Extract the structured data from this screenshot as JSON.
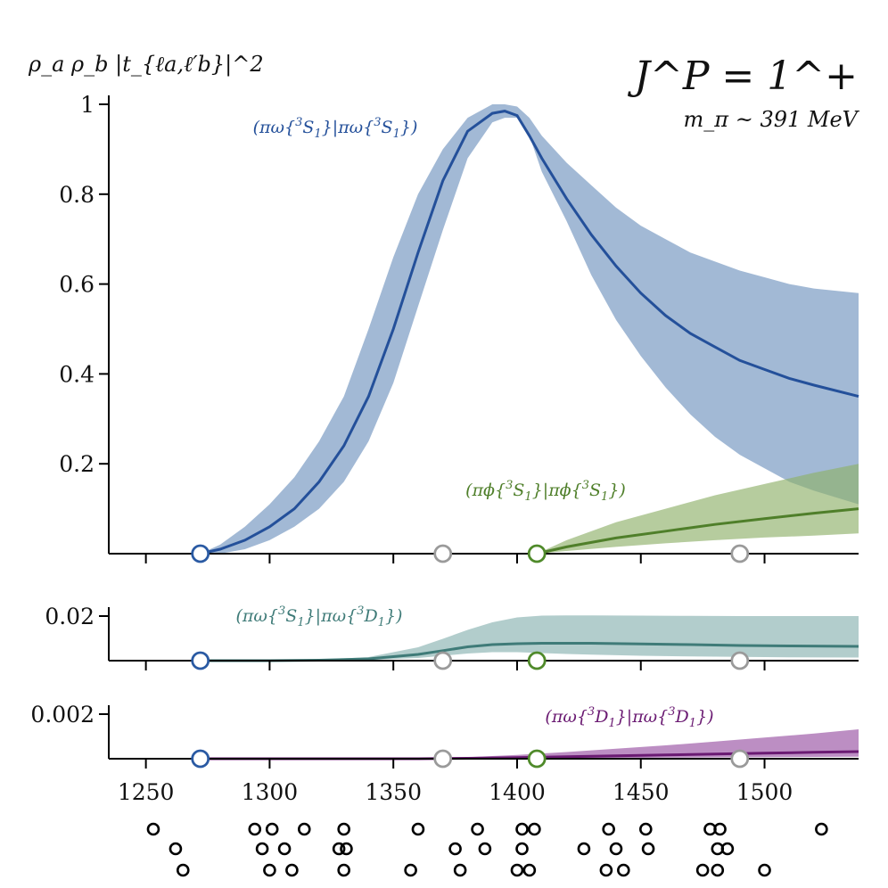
{
  "chart_data": {
    "type": "line",
    "title": "J^P = 1^+",
    "subtitle": "m_π ~ 391 MeV",
    "xlabel": "",
    "ylabel": "ρ_a ρ_b |t_{ℓa,ℓ′b}|^2",
    "xlim": [
      1235,
      1538
    ],
    "x_ticks": [
      1250,
      1300,
      1350,
      1400,
      1450,
      1500
    ],
    "x_tick_labels": [
      "1250",
      "1300",
      "1350",
      "1400",
      "1450",
      "1500"
    ],
    "thresholds": [
      {
        "x": 1272,
        "color": "#2a5aa3"
      },
      {
        "x": 1370,
        "color": "#9a9a9a"
      },
      {
        "x": 1408,
        "color": "#4f8a2a"
      },
      {
        "x": 1490,
        "color": "#9a9a9a"
      }
    ],
    "panels": [
      {
        "ylim": [
          0,
          1.0
        ],
        "y_ticks": [
          0.2,
          0.4,
          0.6,
          0.8,
          1.0
        ],
        "y_tick_labels": [
          "0.2",
          "0.4",
          "0.6",
          "0.8",
          "1"
        ],
        "series": [
          {
            "label_parts": [
              "(πω{",
              "3",
              "S",
              "1",
              "}|πω{",
              "3",
              "S",
              "1",
              "})"
            ],
            "color": "#24509a",
            "band_color": "#a2b9d5",
            "x": [
              1272,
              1280,
              1290,
              1300,
              1310,
              1320,
              1330,
              1340,
              1350,
              1360,
              1370,
              1380,
              1390,
              1395,
              1400,
              1405,
              1410,
              1420,
              1430,
              1440,
              1450,
              1460,
              1470,
              1480,
              1490,
              1500,
              1510,
              1520,
              1538
            ],
            "y": [
              0,
              0.01,
              0.03,
              0.06,
              0.1,
              0.16,
              0.24,
              0.35,
              0.5,
              0.67,
              0.83,
              0.94,
              0.98,
              0.985,
              0.975,
              0.93,
              0.88,
              0.79,
              0.71,
              0.64,
              0.58,
              0.53,
              0.49,
              0.46,
              0.43,
              0.41,
              0.39,
              0.375,
              0.35
            ],
            "lower": [
              0,
              0.0,
              0.01,
              0.03,
              0.06,
              0.1,
              0.16,
              0.25,
              0.38,
              0.55,
              0.72,
              0.88,
              0.96,
              0.97,
              0.97,
              0.93,
              0.85,
              0.74,
              0.62,
              0.52,
              0.44,
              0.37,
              0.31,
              0.26,
              0.22,
              0.19,
              0.16,
              0.14,
              0.11
            ],
            "upper": [
              0,
              0.02,
              0.06,
              0.11,
              0.17,
              0.25,
              0.35,
              0.5,
              0.66,
              0.8,
              0.9,
              0.97,
              1.0,
              1.0,
              0.995,
              0.97,
              0.93,
              0.87,
              0.82,
              0.77,
              0.73,
              0.7,
              0.67,
              0.65,
              0.63,
              0.615,
              0.6,
              0.59,
              0.58
            ]
          },
          {
            "label_parts": [
              "(πϕ{",
              "3",
              "S",
              "1",
              "}|πϕ{",
              "3",
              "S",
              "1",
              "})"
            ],
            "color": "#4f7f2a",
            "band_color": "#8fb06a",
            "band_opacity": 0.65,
            "x": [
              1408,
              1420,
              1440,
              1460,
              1480,
              1500,
              1520,
              1538
            ],
            "y": [
              0,
              0.015,
              0.035,
              0.05,
              0.065,
              0.078,
              0.09,
              0.1
            ],
            "lower": [
              0,
              0.006,
              0.015,
              0.023,
              0.03,
              0.036,
              0.04,
              0.045
            ],
            "upper": [
              0,
              0.03,
              0.07,
              0.1,
              0.13,
              0.155,
              0.18,
              0.2
            ]
          }
        ]
      },
      {
        "ylim": [
          0,
          0.024
        ],
        "y_ticks": [
          0.02
        ],
        "y_tick_labels": [
          "0.02"
        ],
        "series": [
          {
            "label_parts": [
              "(πω{",
              "3",
              "S",
              "1",
              "}|πω{",
              "3",
              "D",
              "1",
              "})"
            ],
            "color": "#3f7b78",
            "band_color": "#aac8c6",
            "band_opacity": 0.9,
            "x": [
              1272,
              1300,
              1320,
              1340,
              1360,
              1370,
              1380,
              1390,
              1400,
              1410,
              1420,
              1430,
              1450,
              1470,
              1490,
              1510,
              1538
            ],
            "y": [
              0,
              0,
              0.0002,
              0.0008,
              0.0028,
              0.0045,
              0.0062,
              0.0072,
              0.0076,
              0.0078,
              0.0078,
              0.0078,
              0.0075,
              0.0072,
              0.0068,
              0.0066,
              0.0064
            ],
            "lower": [
              0,
              0,
              0.0,
              0.0003,
              0.0012,
              0.0022,
              0.0032,
              0.0038,
              0.0038,
              0.0034,
              0.003,
              0.0027,
              0.0022,
              0.0019,
              0.0017,
              0.0015,
              0.0014
            ],
            "upper": [
              0,
              0,
              0.0004,
              0.0016,
              0.006,
              0.0098,
              0.0138,
              0.0172,
              0.0194,
              0.0202,
              0.0203,
              0.0203,
              0.0202,
              0.0201,
              0.02,
              0.02,
              0.02
            ]
          }
        ]
      },
      {
        "ylim": [
          0,
          0.0026
        ],
        "y_ticks": [
          0.002
        ],
        "y_tick_labels": [
          "0.002"
        ],
        "series": [
          {
            "label_parts": [
              "(πω{",
              "3",
              "D",
              "1",
              "}|πω{",
              "3",
              "D",
              "1",
              "})"
            ],
            "color": "#6a1a72",
            "band_color": "#b07ab8",
            "band_opacity": 0.85,
            "x": [
              1272,
              1360,
              1380,
              1400,
              1420,
              1440,
              1460,
              1480,
              1500,
              1520,
              1538
            ],
            "y": [
              0,
              0,
              2e-05,
              5e-05,
              9e-05,
              0.00013,
              0.00017,
              0.00021,
              0.00025,
              0.00029,
              0.00032
            ],
            "lower": [
              0,
              0,
              0.0,
              1e-05,
              2e-05,
              3e-05,
              5e-05,
              6e-05,
              7e-05,
              8e-05,
              9e-05
            ],
            "upper": [
              0,
              0,
              7e-05,
              0.00017,
              0.0003,
              0.00045,
              0.0006,
              0.00077,
              0.00095,
              0.00113,
              0.00132
            ]
          }
        ]
      }
    ],
    "spectrum_levels": [
      1253,
      1262,
      1265,
      1294,
      1297,
      1300,
      1301,
      1306,
      1309,
      1314,
      1328,
      1330,
      1330,
      1331,
      1357,
      1360,
      1375,
      1377,
      1384,
      1387,
      1400,
      1402,
      1402,
      1405,
      1407,
      1427,
      1436,
      1437,
      1440,
      1443,
      1452,
      1453,
      1475,
      1478,
      1481,
      1481,
      1482,
      1485,
      1500,
      1523
    ]
  }
}
